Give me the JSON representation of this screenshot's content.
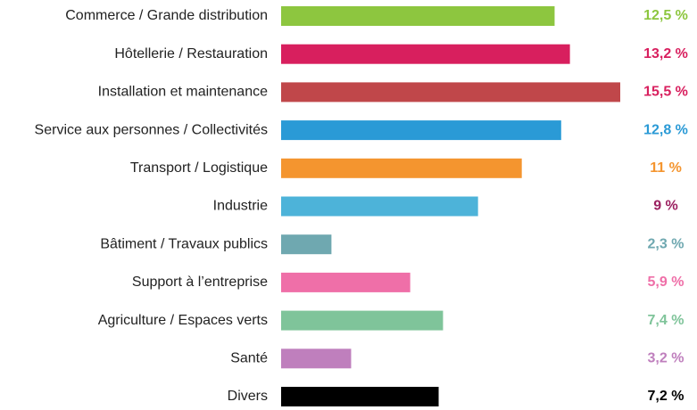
{
  "chart_data": {
    "type": "bar",
    "orientation": "horizontal",
    "categories": [
      "Commerce / Grande distribution",
      "Hôtellerie / Restauration",
      "Installation et maintenance",
      "Service aux personnes / Collectivités",
      "Transport / Logistique",
      "Industrie",
      "Bâtiment / Travaux publics",
      "Support à l’entreprise",
      "Agriculture / Espaces verts",
      "Santé",
      "Divers"
    ],
    "values": [
      12.5,
      13.2,
      15.5,
      12.8,
      11,
      9,
      2.3,
      5.9,
      7.4,
      3.2,
      7.2
    ],
    "value_labels": [
      "12,5 %",
      "13,2 %",
      "15,5 %",
      "12,8 %",
      "11 %",
      "9 %",
      "2,3 %",
      "5,9 %",
      "7,4 %",
      "3,2 %",
      "7,2 %"
    ],
    "colors": [
      "#8dc63f",
      "#d81f5e",
      "#c0474a",
      "#2a9ad6",
      "#f4952f",
      "#4db3d9",
      "#6fa8b0",
      "#ef6fa8",
      "#7fc49a",
      "#bf7fbd",
      "#000000"
    ],
    "label_colors": [
      "#8dc63f",
      "#d81f5e",
      "#d81f5e",
      "#2a9ad6",
      "#f4952f",
      "#9b2060",
      "#6fa8b0",
      "#ef6fa8",
      "#7fc49a",
      "#bf7fbd",
      "#000000"
    ]
  }
}
